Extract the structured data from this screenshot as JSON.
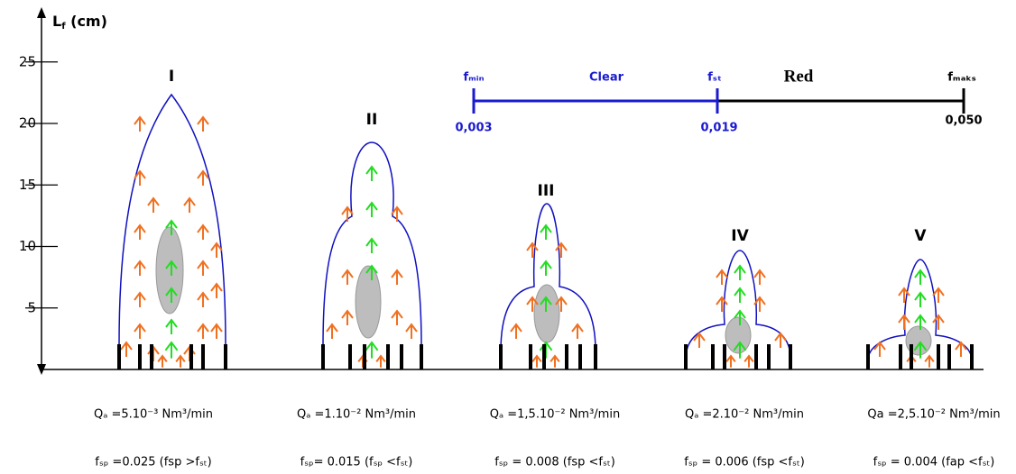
{
  "y_axis": {
    "label": [
      "L",
      "f",
      " (cm)"
    ],
    "ticks": [
      5,
      10,
      15,
      20,
      25
    ]
  },
  "scale": {
    "points": [
      {
        "label": "fₘᵢₙ",
        "value": "0,003"
      },
      {
        "label": "fₛₜ",
        "value": "0,019"
      },
      {
        "label": "fₘₐₖₛ",
        "value": "0,050"
      }
    ],
    "regions": [
      "Clear",
      "Red"
    ]
  },
  "flames": [
    {
      "label": "I",
      "flow": "Qₐ =5.10⁻³ Nm³/min",
      "ratio": "fₛₚ =0.025 (fsp >fₛₜ)"
    },
    {
      "label": "II",
      "flow": "Qₐ =1.10⁻² Nm³/min",
      "ratio": "fₛₚ= 0.015 (fₛₚ <fₛₜ)"
    },
    {
      "label": "III",
      "flow": "Qₐ =1,5.10⁻² Nm³/min",
      "ratio": "fₛₚ = 0.008 (fsp <fₛₜ)"
    },
    {
      "label": "IV",
      "flow": "Qₐ =2.10⁻² Nm³/min",
      "ratio": "fₛₚ = 0.006 (fsp <fₛₜ)"
    },
    {
      "label": "V",
      "flow": "Qa =2,5.10⁻² Nm³/min",
      "ratio": "fₛₚ = 0.004 (fap <fₛₜ)"
    }
  ]
}
